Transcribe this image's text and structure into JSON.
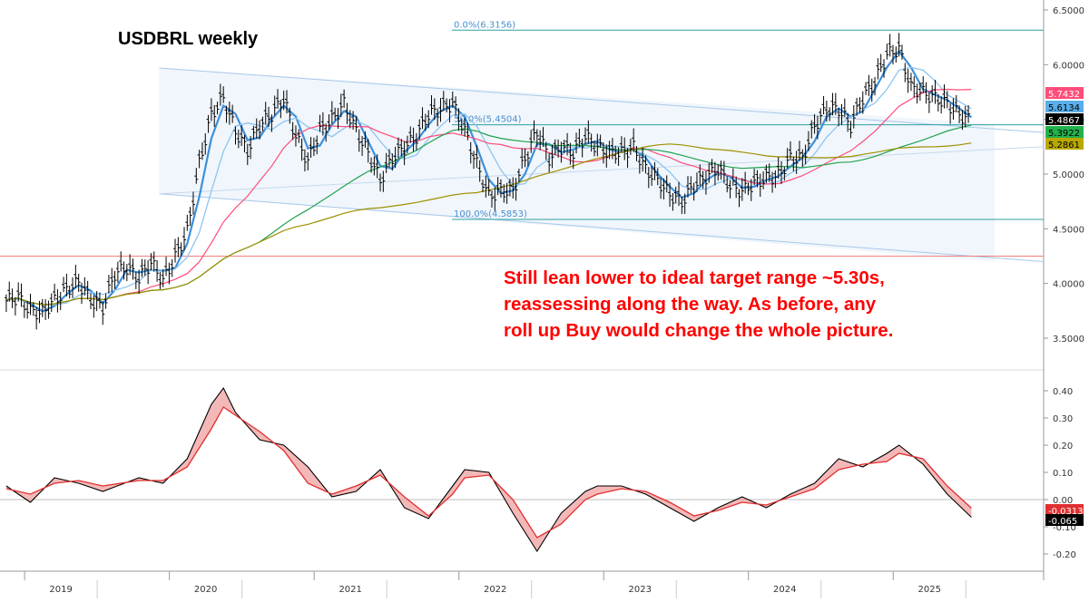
{
  "title": "USDBRL weekly",
  "annotation": [
    "Still lean lower to ideal target range ~5.30s,",
    "reassessing along the way. As before, any",
    "roll up Buy would change the whole picture."
  ],
  "chart_data": [
    {
      "type": "line",
      "panel": "price",
      "title": "USDBRL weekly",
      "y_axis_ticks": [
        "3.5000",
        "4.0000",
        "4.5000",
        "5.0000",
        "5.5000",
        "6.0000",
        "6.5000"
      ],
      "ylim": [
        3.4,
        6.55
      ],
      "x_axis_labels": [
        "2019",
        "2020",
        "2021",
        "2022",
        "2023",
        "2024",
        "2025"
      ],
      "series": [
        {
          "style": "ohlc-bars",
          "color": "#000000",
          "points": [
            [
              "2018-11",
              3.85
            ],
            [
              "2018-12",
              3.88
            ],
            [
              "2019-01",
              3.75
            ],
            [
              "2019-02",
              3.74
            ],
            [
              "2019-03",
              3.85
            ],
            [
              "2019-04",
              3.95
            ],
            [
              "2019-05",
              4.02
            ],
            [
              "2019-06",
              3.85
            ],
            [
              "2019-07",
              3.78
            ],
            [
              "2019-08",
              4.1
            ],
            [
              "2019-09",
              4.15
            ],
            [
              "2019-10",
              4.05
            ],
            [
              "2019-11",
              4.2
            ],
            [
              "2019-12",
              4.03
            ],
            [
              "2020-01",
              4.25
            ],
            [
              "2020-02",
              4.48
            ],
            [
              "2020-03",
              5.1
            ],
            [
              "2020-04",
              5.55
            ],
            [
              "2020-05",
              5.7
            ],
            [
              "2020-06",
              5.4
            ],
            [
              "2020-07",
              5.22
            ],
            [
              "2020-08",
              5.45
            ],
            [
              "2020-09",
              5.55
            ],
            [
              "2020-10",
              5.7
            ],
            [
              "2020-11",
              5.35
            ],
            [
              "2020-12",
              5.12
            ],
            [
              "2021-01",
              5.4
            ],
            [
              "2021-02",
              5.5
            ],
            [
              "2021-03",
              5.65
            ],
            [
              "2021-04",
              5.4
            ],
            [
              "2021-05",
              5.2
            ],
            [
              "2021-06",
              4.95
            ],
            [
              "2021-07",
              5.15
            ],
            [
              "2021-08",
              5.25
            ],
            [
              "2021-09",
              5.35
            ],
            [
              "2021-10",
              5.55
            ],
            [
              "2021-11",
              5.6
            ],
            [
              "2021-12",
              5.65
            ],
            [
              "2022-01",
              5.4
            ],
            [
              "2022-02",
              5.1
            ],
            [
              "2022-03",
              4.8
            ],
            [
              "2022-04",
              4.85
            ],
            [
              "2022-05",
              4.85
            ],
            [
              "2022-06",
              5.15
            ],
            [
              "2022-07",
              5.4
            ],
            [
              "2022-08",
              5.15
            ],
            [
              "2022-09",
              5.25
            ],
            [
              "2022-10",
              5.2
            ],
            [
              "2022-11",
              5.35
            ],
            [
              "2022-12",
              5.25
            ],
            [
              "2023-01",
              5.2
            ],
            [
              "2023-02",
              5.2
            ],
            [
              "2023-03",
              5.25
            ],
            [
              "2023-04",
              5.05
            ],
            [
              "2023-05",
              4.95
            ],
            [
              "2023-06",
              4.82
            ],
            [
              "2023-07",
              4.75
            ],
            [
              "2023-08",
              4.9
            ],
            [
              "2023-09",
              4.98
            ],
            [
              "2023-10",
              5.05
            ],
            [
              "2023-11",
              4.9
            ],
            [
              "2023-12",
              4.85
            ],
            [
              "2024-01",
              4.92
            ],
            [
              "2024-02",
              4.97
            ],
            [
              "2024-03",
              4.99
            ],
            [
              "2024-04",
              5.15
            ],
            [
              "2024-05",
              5.15
            ],
            [
              "2024-06",
              5.45
            ],
            [
              "2024-07",
              5.6
            ],
            [
              "2024-08",
              5.6
            ],
            [
              "2024-09",
              5.45
            ],
            [
              "2024-10",
              5.7
            ],
            [
              "2024-11",
              5.85
            ],
            [
              "2024-12",
              6.1
            ],
            [
              "2025-01",
              6.15
            ],
            [
              "2025-02",
              5.8
            ],
            [
              "2025-03",
              5.75
            ],
            [
              "2025-04",
              5.7
            ],
            [
              "2025-05",
              5.65
            ],
            [
              "2025-06",
              5.55
            ],
            [
              "2025-07",
              5.49
            ]
          ]
        },
        {
          "name": "",
          "color": "#ff4d7a",
          "last_value": 5.7432
        },
        {
          "name": "",
          "color": "#3d8fd9",
          "last_value": 5.6134
        },
        {
          "name": "",
          "color": "#22a34d",
          "last_value": 5.3922
        },
        {
          "name": "",
          "color": "#a09000",
          "last_value": 5.2861
        }
      ],
      "value_tags": [
        {
          "text": "5.7432",
          "bg": "#ff4d7a",
          "fg": "#ffffff"
        },
        {
          "text": "5.6134",
          "bg": "#5aaeea",
          "fg": "#000000"
        },
        {
          "text": "5.4867",
          "bg": "#000000",
          "fg": "#ffffff"
        },
        {
          "text": "5.3922",
          "bg": "#22b14c",
          "fg": "#000000"
        },
        {
          "text": "5.2861",
          "bg": "#b8a800",
          "fg": "#000000"
        }
      ],
      "fibonacci": [
        {
          "label": "0.0%(6.3156)",
          "value": 6.3156
        },
        {
          "label": "50.0%(5.4504)",
          "value": 5.4504
        },
        {
          "label": "100.0%(4.5853)",
          "value": 4.5853
        }
      ],
      "horizontal_line": 4.25
    },
    {
      "type": "area",
      "panel": "oscillator",
      "y_axis_ticks": [
        "0.40",
        "0.30",
        "0.20",
        "0.10",
        "0.00",
        "-0.10",
        "-0.20"
      ],
      "ylim": [
        -0.25,
        0.45
      ],
      "series": [
        {
          "color": "#000000",
          "points": [
            [
              "2018-11",
              0.05
            ],
            [
              "2019-01",
              -0.01
            ],
            [
              "2019-03",
              0.08
            ],
            [
              "2019-05",
              0.06
            ],
            [
              "2019-07",
              0.03
            ],
            [
              "2019-10",
              0.08
            ],
            [
              "2019-12",
              0.06
            ],
            [
              "2020-02",
              0.15
            ],
            [
              "2020-04",
              0.35
            ],
            [
              "2020-05",
              0.41
            ],
            [
              "2020-06",
              0.32
            ],
            [
              "2020-08",
              0.22
            ],
            [
              "2020-10",
              0.2
            ],
            [
              "2020-12",
              0.12
            ],
            [
              "2021-02",
              0.01
            ],
            [
              "2021-04",
              0.03
            ],
            [
              "2021-06",
              0.11
            ],
            [
              "2021-08",
              -0.03
            ],
            [
              "2021-10",
              -0.07
            ],
            [
              "2021-12",
              0.05
            ],
            [
              "2022-01",
              0.11
            ],
            [
              "2022-03",
              0.1
            ],
            [
              "2022-05",
              -0.05
            ],
            [
              "2022-07",
              -0.19
            ],
            [
              "2022-09",
              -0.05
            ],
            [
              "2022-11",
              0.03
            ],
            [
              "2022-12",
              0.05
            ],
            [
              "2023-02",
              0.05
            ],
            [
              "2023-04",
              0.02
            ],
            [
              "2023-06",
              -0.03
            ],
            [
              "2023-08",
              -0.08
            ],
            [
              "2023-10",
              -0.03
            ],
            [
              "2023-12",
              0.01
            ],
            [
              "2024-02",
              -0.03
            ],
            [
              "2024-04",
              0.02
            ],
            [
              "2024-06",
              0.06
            ],
            [
              "2024-08",
              0.15
            ],
            [
              "2024-10",
              0.12
            ],
            [
              "2024-12",
              0.17
            ],
            [
              "2025-01",
              0.2
            ],
            [
              "2025-03",
              0.13
            ],
            [
              "2025-05",
              0.02
            ],
            [
              "2025-07",
              -0.065
            ]
          ]
        },
        {
          "color": "#e03030",
          "points": [
            [
              "2018-11",
              0.04
            ],
            [
              "2019-01",
              0.02
            ],
            [
              "2019-03",
              0.06
            ],
            [
              "2019-05",
              0.07
            ],
            [
              "2019-07",
              0.05
            ],
            [
              "2019-10",
              0.07
            ],
            [
              "2019-12",
              0.07
            ],
            [
              "2020-02",
              0.12
            ],
            [
              "2020-04",
              0.26
            ],
            [
              "2020-05",
              0.34
            ],
            [
              "2020-06",
              0.31
            ],
            [
              "2020-08",
              0.25
            ],
            [
              "2020-10",
              0.18
            ],
            [
              "2020-12",
              0.06
            ],
            [
              "2021-02",
              0.02
            ],
            [
              "2021-04",
              0.05
            ],
            [
              "2021-06",
              0.09
            ],
            [
              "2021-08",
              0.01
            ],
            [
              "2021-10",
              -0.06
            ],
            [
              "2021-12",
              0.02
            ],
            [
              "2022-01",
              0.08
            ],
            [
              "2022-03",
              0.09
            ],
            [
              "2022-05",
              0.0
            ],
            [
              "2022-07",
              -0.14
            ],
            [
              "2022-09",
              -0.09
            ],
            [
              "2022-11",
              0.0
            ],
            [
              "2022-12",
              0.02
            ],
            [
              "2023-02",
              0.04
            ],
            [
              "2023-04",
              0.03
            ],
            [
              "2023-06",
              -0.01
            ],
            [
              "2023-08",
              -0.06
            ],
            [
              "2023-10",
              -0.04
            ],
            [
              "2023-12",
              -0.01
            ],
            [
              "2024-02",
              -0.02
            ],
            [
              "2024-04",
              0.01
            ],
            [
              "2024-06",
              0.04
            ],
            [
              "2024-08",
              0.11
            ],
            [
              "2024-10",
              0.13
            ],
            [
              "2024-12",
              0.14
            ],
            [
              "2025-01",
              0.17
            ],
            [
              "2025-03",
              0.15
            ],
            [
              "2025-05",
              0.05
            ],
            [
              "2025-07",
              -0.0313
            ]
          ]
        }
      ],
      "value_tags": [
        {
          "text": "-0.0313",
          "bg": "#e03030",
          "fg": "#ffffff"
        },
        {
          "text": "-0.065",
          "bg": "#000000",
          "fg": "#ffffff"
        }
      ]
    }
  ]
}
